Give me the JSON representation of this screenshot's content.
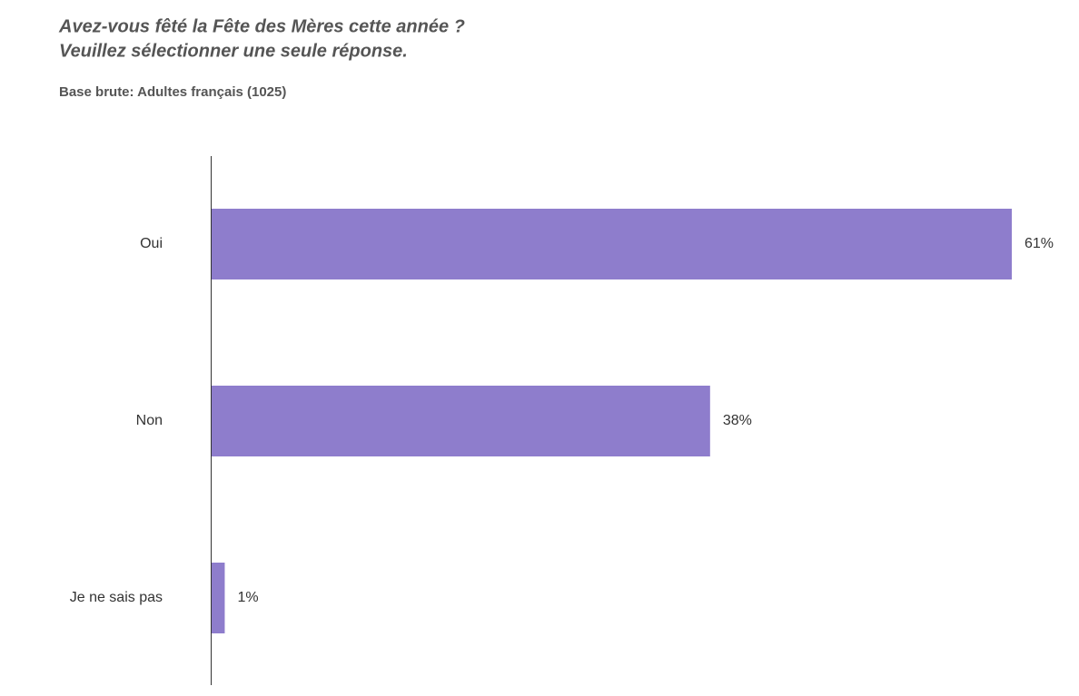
{
  "chart_data": {
    "type": "hbar",
    "title": [
      "Avez-vous fêté la Fête des Mères cette année ?",
      "Veuillez sélectionner une seule réponse."
    ],
    "subtitle": "Base brute: Adultes français (1025)",
    "categories": [
      "Oui",
      "Non",
      "Je ne sais pas"
    ],
    "values": [
      61,
      38,
      1
    ],
    "value_labels": [
      "61%",
      "38%",
      "1%"
    ],
    "color": "#8e7dcc"
  }
}
